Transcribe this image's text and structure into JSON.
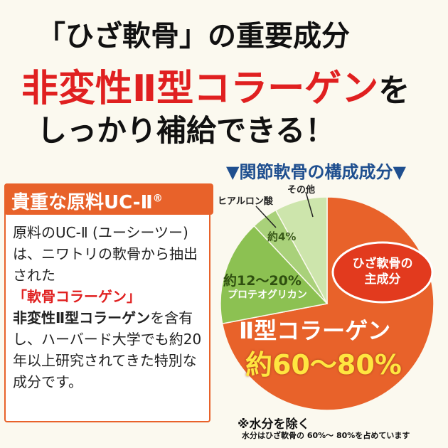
{
  "headline": {
    "line1": "「ひざ軟骨」の重要成分",
    "line2": "非変性Ⅱ型コラーゲン",
    "line2_suffix": "を",
    "line3": "しっかり補給できる！"
  },
  "card": {
    "title": "貴重な原料UC-Ⅱ",
    "title_mark": "®",
    "p1": "原料のUC-Ⅱ (ユーシーツー)は、ニワトリの軟骨から抽出された",
    "p1_red": "「軟骨コラーゲン」",
    "p2_bold": "非変性Ⅱ型コラーゲン",
    "p2": "を含有し、ハーバード大学でも約20年以上研究されてきた特別な成分です。"
  },
  "chart_data": {
    "type": "pie",
    "title": "▼関節軟骨の構成成分▼",
    "slices": [
      {
        "name": "Ⅱ型コラーゲン",
        "label": "約60～80%",
        "value": 72,
        "color": "#e8622a"
      },
      {
        "name": "プロテオグリカン",
        "label": "約12～20%",
        "value": 16,
        "color": "#8cc152"
      },
      {
        "name": "ヒアルロン酸",
        "label": "約4%",
        "value": 4,
        "color": "#a9d17a"
      },
      {
        "name": "その他",
        "label": "",
        "value": 8,
        "color": "#cde5ac"
      }
    ],
    "badge": {
      "line1": "ひざ軟骨の",
      "line2": "主成分"
    }
  },
  "notes": {
    "main": "※水分を除く",
    "sub": "水分はひざ軟骨の 60%～ 80%を占めています"
  }
}
